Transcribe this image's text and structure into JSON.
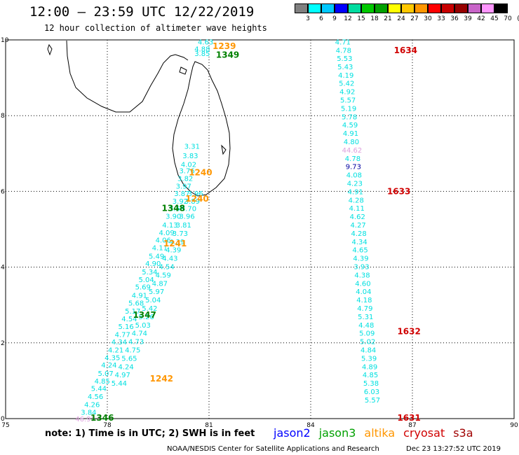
{
  "title": "12:00 – 23:59 UTC 12/22/2019",
  "subtitle": "12 hour collection of altimeter wave heights",
  "color_scale": {
    "unit": "(ft)",
    "labels": [
      "3",
      "6",
      "9",
      "12",
      "15",
      "18",
      "21",
      "24",
      "27",
      "30",
      "33",
      "36",
      "39",
      "42",
      "45",
      "70"
    ],
    "colors": [
      "#808080",
      "#00ffff",
      "#00c8ff",
      "#0000ff",
      "#00dca0",
      "#00c800",
      "#00a000",
      "#ffff00",
      "#ffc800",
      "#ff9600",
      "#ff0000",
      "#c80000",
      "#960000",
      "#c864c8",
      "#ff96ff",
      "#000000"
    ]
  },
  "axes": {
    "x_ticks": [
      "75",
      "78",
      "81",
      "84",
      "87",
      "90"
    ],
    "y_ticks": [
      "0",
      "2",
      "4",
      "6",
      "8",
      "10"
    ],
    "lon_range": [
      75,
      90
    ],
    "lat_range": [
      0,
      10
    ]
  },
  "tracks": [
    {
      "satellite": "altika",
      "color": "#00e0e0",
      "points": [
        {
          "lon": 80.9,
          "lat": 9.95,
          "v": "4.63"
        },
        {
          "lon": 80.8,
          "lat": 9.77,
          "v": "4.88"
        },
        {
          "lon": 80.8,
          "lat": 9.65,
          "v": "3.85"
        },
        {
          "lon": 80.5,
          "lat": 7.2,
          "v": "3.31"
        },
        {
          "lon": 80.45,
          "lat": 6.95,
          "v": "3.83"
        },
        {
          "lon": 80.4,
          "lat": 6.72,
          "v": "4.02"
        },
        {
          "lon": 80.35,
          "lat": 6.55,
          "v": "3.76"
        },
        {
          "lon": 80.3,
          "lat": 6.35,
          "v": "3.82"
        },
        {
          "lon": 80.25,
          "lat": 6.15,
          "v": "3.97"
        },
        {
          "lon": 80.2,
          "lat": 5.95,
          "v": "3.87"
        },
        {
          "lon": 80.15,
          "lat": 5.75,
          "v": "3.92"
        },
        {
          "lon": 80.05,
          "lat": 5.55,
          "v": "3.59"
        },
        {
          "lon": 79.95,
          "lat": 5.35,
          "v": "3.90"
        },
        {
          "lon": 79.85,
          "lat": 5.12,
          "v": "4.13"
        },
        {
          "lon": 79.75,
          "lat": 4.92,
          "v": "4.09"
        },
        {
          "lon": 79.65,
          "lat": 4.72,
          "v": "4.06"
        },
        {
          "lon": 79.55,
          "lat": 4.52,
          "v": "4.11"
        },
        {
          "lon": 79.45,
          "lat": 4.3,
          "v": "5.49"
        },
        {
          "lon": 79.35,
          "lat": 4.1,
          "v": "4.90"
        },
        {
          "lon": 79.25,
          "lat": 3.88,
          "v": "5.34"
        },
        {
          "lon": 79.15,
          "lat": 3.68,
          "v": "5.04"
        },
        {
          "lon": 79.05,
          "lat": 3.48,
          "v": "5.69"
        },
        {
          "lon": 78.95,
          "lat": 3.26,
          "v": "4.91"
        },
        {
          "lon": 78.85,
          "lat": 3.06,
          "v": "5.68"
        },
        {
          "lon": 78.75,
          "lat": 2.85,
          "v": "5.17"
        },
        {
          "lon": 78.65,
          "lat": 2.64,
          "v": "4.54"
        },
        {
          "lon": 78.55,
          "lat": 2.44,
          "v": "5.16"
        },
        {
          "lon": 78.45,
          "lat": 2.23,
          "v": "4.77"
        },
        {
          "lon": 78.35,
          "lat": 2.03,
          "v": "4.34"
        },
        {
          "lon": 78.25,
          "lat": 1.82,
          "v": "4.21"
        },
        {
          "lon": 78.15,
          "lat": 1.62,
          "v": "4.35"
        },
        {
          "lon": 78.05,
          "lat": 1.42,
          "v": "4.24"
        },
        {
          "lon": 77.95,
          "lat": 1.2,
          "v": "5.07"
        },
        {
          "lon": 77.85,
          "lat": 1.0,
          "v": "4.85"
        },
        {
          "lon": 77.75,
          "lat": 0.8,
          "v": "5.44"
        },
        {
          "lon": 77.65,
          "lat": 0.59,
          "v": "4.56"
        },
        {
          "lon": 77.55,
          "lat": 0.38,
          "v": "4.26"
        },
        {
          "lon": 77.45,
          "lat": 0.18,
          "v": "3.84"
        },
        {
          "lon": 77.35,
          "lat": 0.0,
          "v": "46.97"
        }
      ]
    },
    {
      "satellite": "jason3",
      "color": "#00e0e0",
      "points": [
        {
          "lon": 80.6,
          "lat": 5.95,
          "v": "3.96"
        },
        {
          "lon": 80.5,
          "lat": 5.75,
          "v": "3.89"
        },
        {
          "lon": 80.4,
          "lat": 5.55,
          "v": "3.70"
        },
        {
          "lon": 80.35,
          "lat": 5.35,
          "v": "3.96"
        },
        {
          "lon": 80.25,
          "lat": 5.12,
          "v": "3.81"
        },
        {
          "lon": 80.15,
          "lat": 4.9,
          "v": "3.73"
        },
        {
          "lon": 80.05,
          "lat": 4.68,
          "v": "4.39"
        },
        {
          "lon": 79.95,
          "lat": 4.46,
          "v": "4.39"
        },
        {
          "lon": 79.85,
          "lat": 4.24,
          "v": "4.43"
        },
        {
          "lon": 79.75,
          "lat": 4.02,
          "v": "4.54"
        },
        {
          "lon": 79.65,
          "lat": 3.8,
          "v": "4.59"
        },
        {
          "lon": 79.55,
          "lat": 3.58,
          "v": "4.87"
        },
        {
          "lon": 79.45,
          "lat": 3.36,
          "v": "5.97"
        },
        {
          "lon": 79.35,
          "lat": 3.14,
          "v": "5.04"
        },
        {
          "lon": 79.25,
          "lat": 2.92,
          "v": "5.42"
        },
        {
          "lon": 79.15,
          "lat": 2.7,
          "v": "5.26"
        },
        {
          "lon": 79.05,
          "lat": 2.48,
          "v": "5.03"
        },
        {
          "lon": 78.95,
          "lat": 2.26,
          "v": "4.74"
        },
        {
          "lon": 78.85,
          "lat": 2.04,
          "v": "4.73"
        },
        {
          "lon": 78.75,
          "lat": 1.82,
          "v": "4.75"
        },
        {
          "lon": 78.65,
          "lat": 1.6,
          "v": "5.65"
        },
        {
          "lon": 78.55,
          "lat": 1.38,
          "v": "4.24"
        },
        {
          "lon": 78.45,
          "lat": 1.16,
          "v": "4.97"
        },
        {
          "lon": 78.35,
          "lat": 0.94,
          "v": "5.44"
        }
      ]
    },
    {
      "satellite": "cryosat",
      "color": "#00e0e0",
      "points": [
        {
          "lon": 84.95,
          "lat": 9.95,
          "v": "4.71"
        },
        {
          "lon": 84.97,
          "lat": 9.73,
          "v": "4.78"
        },
        {
          "lon": 85.0,
          "lat": 9.52,
          "v": "5.53"
        },
        {
          "lon": 85.02,
          "lat": 9.3,
          "v": "5.43"
        },
        {
          "lon": 85.04,
          "lat": 9.08,
          "v": "4.19"
        },
        {
          "lon": 85.06,
          "lat": 8.86,
          "v": "5.42"
        },
        {
          "lon": 85.08,
          "lat": 8.64,
          "v": "4.92"
        },
        {
          "lon": 85.1,
          "lat": 8.42,
          "v": "5.57"
        },
        {
          "lon": 85.12,
          "lat": 8.2,
          "v": "5.19"
        },
        {
          "lon": 85.14,
          "lat": 7.98,
          "v": "5.78"
        },
        {
          "lon": 85.16,
          "lat": 7.76,
          "v": "4.59"
        },
        {
          "lon": 85.18,
          "lat": 7.54,
          "v": "4.91"
        },
        {
          "lon": 85.2,
          "lat": 7.32,
          "v": "4.80"
        },
        {
          "lon": 85.22,
          "lat": 7.1,
          "v": "44.62",
          "color": "#dda0dd"
        },
        {
          "lon": 85.24,
          "lat": 6.88,
          "v": "4.78"
        },
        {
          "lon": 85.26,
          "lat": 6.66,
          "v": "9.73",
          "color": "#0000a0"
        },
        {
          "lon": 85.28,
          "lat": 6.44,
          "v": "4.08"
        },
        {
          "lon": 85.3,
          "lat": 6.22,
          "v": "4.23"
        },
        {
          "lon": 85.32,
          "lat": 6.0,
          "v": "4.91"
        },
        {
          "lon": 85.34,
          "lat": 5.78,
          "v": "4.28"
        },
        {
          "lon": 85.36,
          "lat": 5.56,
          "v": "4.11"
        },
        {
          "lon": 85.38,
          "lat": 5.34,
          "v": "4.62"
        },
        {
          "lon": 85.4,
          "lat": 5.12,
          "v": "4.27"
        },
        {
          "lon": 85.42,
          "lat": 4.9,
          "v": "4.28"
        },
        {
          "lon": 85.44,
          "lat": 4.68,
          "v": "4.34"
        },
        {
          "lon": 85.46,
          "lat": 4.46,
          "v": "4.65"
        },
        {
          "lon": 85.48,
          "lat": 4.24,
          "v": "4.39"
        },
        {
          "lon": 85.5,
          "lat": 4.02,
          "v": "3.93"
        },
        {
          "lon": 85.52,
          "lat": 3.8,
          "v": "4.38"
        },
        {
          "lon": 85.54,
          "lat": 3.58,
          "v": "4.60"
        },
        {
          "lon": 85.56,
          "lat": 3.36,
          "v": "4.04"
        },
        {
          "lon": 85.58,
          "lat": 3.14,
          "v": "4.18"
        },
        {
          "lon": 85.6,
          "lat": 2.92,
          "v": "4.79"
        },
        {
          "lon": 85.62,
          "lat": 2.7,
          "v": "5.31"
        },
        {
          "lon": 85.64,
          "lat": 2.48,
          "v": "4.48"
        },
        {
          "lon": 85.66,
          "lat": 2.26,
          "v": "5.09"
        },
        {
          "lon": 85.68,
          "lat": 2.04,
          "v": "5.02"
        },
        {
          "lon": 85.7,
          "lat": 1.82,
          "v": "4.84"
        },
        {
          "lon": 85.72,
          "lat": 1.6,
          "v": "5.39"
        },
        {
          "lon": 85.74,
          "lat": 1.38,
          "v": "4.89"
        },
        {
          "lon": 85.76,
          "lat": 1.16,
          "v": "4.85"
        },
        {
          "lon": 85.78,
          "lat": 0.94,
          "v": "5.38"
        },
        {
          "lon": 85.8,
          "lat": 0.72,
          "v": "6.03"
        },
        {
          "lon": 85.82,
          "lat": 0.5,
          "v": "5.57"
        }
      ]
    }
  ],
  "pass_times": [
    {
      "text": "1239",
      "color": "#ff9600",
      "lon": 81.45,
      "lat": 9.83
    },
    {
      "text": "1349",
      "color": "#008000",
      "lon": 81.55,
      "lat": 9.6
    },
    {
      "text": "1634",
      "color": "#d00000",
      "lon": 86.8,
      "lat": 9.72
    },
    {
      "text": "1240",
      "color": "#ff9600",
      "lon": 80.75,
      "lat": 6.5
    },
    {
      "text": "1633",
      "color": "#d00000",
      "lon": 86.6,
      "lat": 6.0
    },
    {
      "text": "1240",
      "color": "#ff9600",
      "lon": 80.65,
      "lat": 5.8
    },
    {
      "text": "1348",
      "color": "#008000",
      "lon": 79.95,
      "lat": 5.55
    },
    {
      "text": "1241",
      "color": "#ff9600",
      "lon": 80.0,
      "lat": 4.62
    },
    {
      "text": "1347",
      "color": "#008000",
      "lon": 79.1,
      "lat": 2.74
    },
    {
      "text": "1632",
      "color": "#d00000",
      "lon": 86.9,
      "lat": 2.3
    },
    {
      "text": "1242",
      "color": "#ff9600",
      "lon": 79.6,
      "lat": 1.05
    },
    {
      "text": "1346",
      "color": "#008000",
      "lon": 77.85,
      "lat": 0.02
    },
    {
      "text": "1631",
      "color": "#d00000",
      "lon": 86.9,
      "lat": 0.02
    }
  ],
  "note": "note: 1) Time is in UTC; 2) SWH is in feet",
  "legend": [
    {
      "label": "jason2",
      "color": "#0000ff"
    },
    {
      "label": "jason3",
      "color": "#00a000"
    },
    {
      "label": "altika",
      "color": "#ff9600"
    },
    {
      "label": "cryosat",
      "color": "#d00000"
    },
    {
      "label": "s3a",
      "color": "#a00000"
    }
  ],
  "footer": "NOAA/NESDIS Center for Satellite Applications and Research",
  "timestamp": "Dec 23 13:27:52 UTC 2019"
}
